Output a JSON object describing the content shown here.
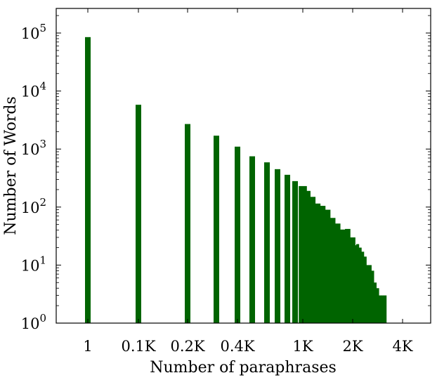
{
  "chart_data": {
    "type": "bar",
    "title": "",
    "xlabel": "Number of paraphrases",
    "ylabel": "Number of Words",
    "y_scale": "log",
    "ylim": [
      1,
      250000
    ],
    "x_ticks": [
      {
        "label": "1",
        "value": 1
      },
      {
        "label": "0.1K",
        "value": 100
      },
      {
        "label": "0.2K",
        "value": 200
      },
      {
        "label": "0.4K",
        "value": 400
      },
      {
        "label": "1K",
        "value": 1000
      },
      {
        "label": "2K",
        "value": 2000
      },
      {
        "label": "4K",
        "value": 4000
      }
    ],
    "y_ticks": [
      {
        "base": "10",
        "exp": "0",
        "value": 1
      },
      {
        "base": "10",
        "exp": "1",
        "value": 10
      },
      {
        "base": "10",
        "exp": "2",
        "value": 100
      },
      {
        "base": "10",
        "exp": "3",
        "value": 1000
      },
      {
        "base": "10",
        "exp": "4",
        "value": 10000
      },
      {
        "base": "10",
        "exp": "5",
        "value": 100000
      }
    ],
    "bar_color": "#006400",
    "bars": [
      {
        "x": 1,
        "y": 85000
      },
      {
        "x": 100,
        "y": 5800
      },
      {
        "x": 200,
        "y": 2700
      },
      {
        "x": 300,
        "y": 1700
      },
      {
        "x": 400,
        "y": 1100
      },
      {
        "x": 500,
        "y": 750
      },
      {
        "x": 600,
        "y": 590
      },
      {
        "x": 700,
        "y": 450
      },
      {
        "x": 800,
        "y": 360
      },
      {
        "x": 900,
        "y": 280
      },
      {
        "x": 1000,
        "y": 230
      },
      {
        "x": 1100,
        "y": 190
      },
      {
        "x": 1200,
        "y": 150
      },
      {
        "x": 1300,
        "y": 115
      },
      {
        "x": 1400,
        "y": 105
      },
      {
        "x": 1500,
        "y": 90
      },
      {
        "x": 1600,
        "y": 65
      },
      {
        "x": 1700,
        "y": 52
      },
      {
        "x": 1800,
        "y": 41
      },
      {
        "x": 1900,
        "y": 42
      },
      {
        "x": 2000,
        "y": 30
      },
      {
        "x": 2100,
        "y": 22
      },
      {
        "x": 2200,
        "y": 23
      },
      {
        "x": 2300,
        "y": 20
      },
      {
        "x": 2400,
        "y": 17
      },
      {
        "x": 2500,
        "y": 14
      },
      {
        "x": 2600,
        "y": 10
      },
      {
        "x": 2700,
        "y": 10
      },
      {
        "x": 2800,
        "y": 8
      },
      {
        "x": 2900,
        "y": 5
      },
      {
        "x": 3000,
        "y": 4
      },
      {
        "x": 3100,
        "y": 3
      },
      {
        "x": 3200,
        "y": 3
      },
      {
        "x": 3300,
        "y": 3
      }
    ]
  }
}
